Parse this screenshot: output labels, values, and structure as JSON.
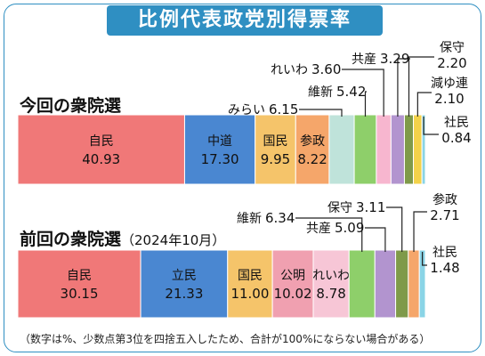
{
  "title": "比例代表政党別得票率",
  "note": "（数字は%、少数点第3位を四捨五入したため、合計が100%にならない場合がある）",
  "colors": {
    "frame": "#2f8fc2",
    "leader": "#222222"
  },
  "chart_data": [
    {
      "type": "bar",
      "stacked": "horizontal-100",
      "title": "今回の衆院選",
      "subtitle": "",
      "segments": [
        {
          "name": "自民",
          "value": 40.93,
          "value_label": "40.93",
          "color": "#f07878"
        },
        {
          "name": "中道",
          "value": 17.3,
          "value_label": "17.30",
          "color": "#4a87d1"
        },
        {
          "name": "国民",
          "value": 9.95,
          "value_label": "9.95",
          "color": "#f5c46a"
        },
        {
          "name": "参政",
          "value": 8.22,
          "value_label": "8.22",
          "color": "#f5a66a"
        },
        {
          "name": "みらい",
          "value": 6.15,
          "value_label": "6.15",
          "color": "#bfe3da"
        },
        {
          "name": "維新",
          "value": 5.42,
          "value_label": "5.42",
          "color": "#8ecf6a"
        },
        {
          "name": "れいわ",
          "value": 3.6,
          "value_label": "3.60",
          "color": "#f7b6cf"
        },
        {
          "name": "共産",
          "value": 3.29,
          "value_label": "3.29",
          "color": "#b294cf"
        },
        {
          "name": "保守",
          "value": 2.2,
          "value_label": "2.20",
          "color": "#7f9a4a"
        },
        {
          "name": "減ゆ連",
          "value": 2.1,
          "value_label": "2.10",
          "color": "#f3d24a"
        },
        {
          "name": "社民",
          "value": 0.84,
          "value_label": "0.84",
          "color": "#8ad4e6"
        }
      ]
    },
    {
      "type": "bar",
      "stacked": "horizontal-100",
      "title": "前回の衆院選",
      "subtitle": "（2024年10月）",
      "segments": [
        {
          "name": "自民",
          "value": 30.15,
          "value_label": "30.15",
          "color": "#f07878"
        },
        {
          "name": "立民",
          "value": 21.33,
          "value_label": "21.33",
          "color": "#4a87d1"
        },
        {
          "name": "国民",
          "value": 11.0,
          "value_label": "11.00",
          "color": "#f5c46a"
        },
        {
          "name": "公明",
          "value": 10.02,
          "value_label": "10.02",
          "color": "#f0a0b0"
        },
        {
          "name": "れいわ",
          "value": 8.78,
          "value_label": "8.78",
          "color": "#f7c6d6"
        },
        {
          "name": "維新",
          "value": 6.34,
          "value_label": "6.34",
          "color": "#8ecf6a"
        },
        {
          "name": "共産",
          "value": 5.09,
          "value_label": "5.09",
          "color": "#b294cf"
        },
        {
          "name": "保守",
          "value": 3.11,
          "value_label": "3.11",
          "color": "#7f9a4a"
        },
        {
          "name": "参政",
          "value": 2.71,
          "value_label": "2.71",
          "color": "#f5a66a"
        },
        {
          "name": "社民",
          "value": 1.48,
          "value_label": "1.48",
          "color": "#8ad4e6"
        }
      ]
    }
  ]
}
